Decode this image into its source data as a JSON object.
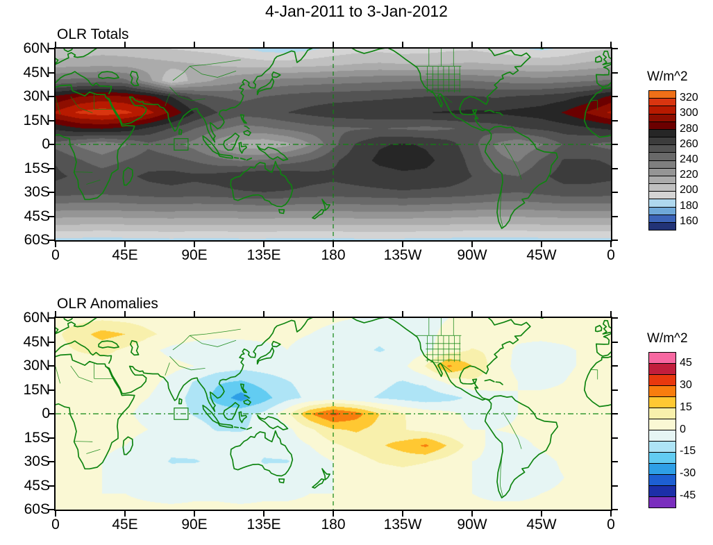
{
  "title": "4-Jan-2011 to 3-Jan-2012",
  "panels": [
    {
      "title": "OLR Totals"
    },
    {
      "title": "OLR Anomalies"
    }
  ],
  "axes": {
    "x_labels": [
      "0",
      "45E",
      "90E",
      "135E",
      "180",
      "135W",
      "90W",
      "45W",
      "0"
    ],
    "y_labels": [
      "60N",
      "45N",
      "30N",
      "15N",
      "0",
      "15S",
      "30S",
      "45S",
      "60S"
    ]
  },
  "colorbars": {
    "totals": {
      "title": "W/m^2",
      "span": [
        150,
        330
      ],
      "thresholds": [
        160,
        170,
        180,
        190,
        200,
        210,
        220,
        230,
        240,
        250,
        260,
        270,
        280,
        290,
        300,
        310,
        320
      ],
      "colors": [
        "#223377",
        "#3C64B8",
        "#6FA8D8",
        "#AFD8EE",
        "#D4D4D4",
        "#C0C0C0",
        "#ABABAB",
        "#959595",
        "#7F7F7F",
        "#696969",
        "#535353",
        "#3C3C3C",
        "#262626",
        "#6B0000",
        "#8E0E00",
        "#B81A00",
        "#D93510",
        "#F07018"
      ],
      "tick_values": [
        320,
        300,
        280,
        260,
        240,
        220,
        200,
        180,
        160
      ],
      "tick_labels": [
        "320",
        "300",
        "280",
        "260",
        "240",
        "220",
        "200",
        "180",
        "160"
      ]
    },
    "anomalies": {
      "title": "W/m^2",
      "span": [
        -52.5,
        52.5
      ],
      "thresholds": [
        -45,
        -37.5,
        -30,
        -22.5,
        -15,
        -7.5,
        0,
        7.5,
        15,
        22.5,
        30,
        37.5,
        45
      ],
      "colors": [
        "#7A2EBE",
        "#1C2FA8",
        "#1D5FD2",
        "#2E9FE6",
        "#62CCF2",
        "#AEE4F6",
        "#E6F5F4",
        "#FAF8D4",
        "#F8F0AC",
        "#FFC832",
        "#F87D0E",
        "#E8380E",
        "#C21E3C",
        "#F768A1"
      ],
      "tick_values": [
        45,
        30,
        15,
        0,
        -15,
        -30,
        -45
      ],
      "tick_labels": [
        "45",
        "30",
        "15",
        "0",
        "-15",
        "-30",
        "-45"
      ]
    }
  },
  "chart_data": [
    {
      "type": "heatmap",
      "title": "OLR Totals",
      "units": "W/m^2",
      "lon_start": 0,
      "lon_step": 15,
      "lat_start": 60,
      "lat_step": -10,
      "colorbar": "totals",
      "values": [
        [
          200,
          203,
          205,
          204,
          202,
          200,
          198,
          196,
          192,
          186,
          185,
          188,
          193,
          196,
          197,
          195,
          196,
          198,
          199,
          196,
          192,
          188,
          192,
          197,
          200
        ],
        [
          216,
          217,
          218,
          217,
          215,
          213,
          211,
          209,
          207,
          206,
          206,
          207,
          209,
          211,
          212,
          211,
          210,
          211,
          212,
          211,
          210,
          209,
          210,
          213,
          216
        ],
        [
          242,
          244,
          246,
          243,
          224,
          200,
          214,
          222,
          228,
          232,
          234,
          235,
          236,
          237,
          238,
          239,
          240,
          241,
          240,
          238,
          236,
          235,
          237,
          239,
          242
        ],
        [
          282,
          290,
          294,
          291,
          284,
          270,
          256,
          250,
          248,
          250,
          253,
          255,
          256,
          257,
          258,
          259,
          260,
          261,
          261,
          259,
          261,
          263,
          266,
          272,
          282
        ],
        [
          302,
          312,
          316,
          313,
          304,
          288,
          270,
          260,
          254,
          256,
          260,
          263,
          266,
          267,
          268,
          269,
          270,
          271,
          272,
          271,
          273,
          275,
          281,
          291,
          302
        ],
        [
          272,
          279,
          281,
          277,
          268,
          259,
          250,
          242,
          236,
          238,
          242,
          246,
          248,
          249,
          250,
          249,
          247,
          249,
          252,
          255,
          259,
          262,
          265,
          268,
          272
        ],
        [
          246,
          238,
          231,
          239,
          248,
          243,
          236,
          224,
          214,
          211,
          217,
          229,
          247,
          261,
          269,
          271,
          269,
          264,
          254,
          239,
          231,
          239,
          251,
          250,
          246
        ],
        [
          259,
          251,
          245,
          250,
          255,
          253,
          249,
          243,
          239,
          241,
          245,
          250,
          258,
          266,
          272,
          274,
          272,
          267,
          257,
          243,
          239,
          251,
          261,
          261,
          259
        ],
        [
          262,
          258,
          255,
          258,
          262,
          264,
          262,
          264,
          268,
          270,
          268,
          264,
          262,
          264,
          266,
          268,
          268,
          266,
          260,
          252,
          250,
          258,
          264,
          264,
          262
        ],
        [
          255,
          254,
          253,
          254,
          256,
          257,
          256,
          257,
          259,
          260,
          259,
          257,
          256,
          257,
          258,
          259,
          258,
          257,
          255,
          252,
          250,
          253,
          256,
          256,
          255
        ],
        [
          234,
          233,
          233,
          234,
          235,
          235,
          234,
          234,
          235,
          236,
          235,
          234,
          234,
          235,
          235,
          236,
          235,
          234,
          233,
          232,
          232,
          233,
          234,
          234,
          234
        ],
        [
          211,
          211,
          210,
          211,
          211,
          212,
          211,
          211,
          212,
          212,
          211,
          211,
          211,
          212,
          212,
          212,
          211,
          211,
          210,
          210,
          210,
          211,
          211,
          211,
          211
        ],
        [
          187,
          187,
          186,
          187,
          187,
          188,
          187,
          187,
          188,
          188,
          187,
          187,
          187,
          188,
          188,
          188,
          187,
          187,
          186,
          186,
          186,
          187,
          187,
          187,
          187
        ]
      ]
    },
    {
      "type": "heatmap",
      "title": "OLR Anomalies",
      "units": "W/m^2",
      "lon_start": 0,
      "lon_step": 15,
      "lat_start": 60,
      "lat_step": -10,
      "colorbar": "anomalies",
      "values": [
        [
          4,
          5,
          6,
          5,
          4,
          3,
          3,
          3,
          3,
          2,
          2,
          2,
          1,
          0,
          -2,
          -3,
          -2,
          0,
          2,
          3,
          3,
          3,
          3,
          4,
          4
        ],
        [
          6,
          12,
          18,
          15,
          9,
          5,
          3,
          2,
          2,
          2,
          1,
          0,
          -2,
          -5,
          -6,
          -4,
          -2,
          2,
          4,
          4,
          3,
          3,
          4,
          5,
          6
        ],
        [
          5,
          8,
          10,
          6,
          2,
          -2,
          -4,
          -5,
          -4,
          -2,
          0,
          -2,
          -4,
          -6,
          -8,
          -6,
          -2,
          4,
          8,
          6,
          -2,
          -4,
          -2,
          2,
          5
        ],
        [
          3,
          3,
          4,
          4,
          3,
          2,
          0,
          -3,
          -5,
          -4,
          -3,
          -2,
          -1,
          -2,
          -4,
          -2,
          8,
          24,
          15,
          4,
          -2,
          -3,
          -1,
          1,
          3
        ],
        [
          4,
          4,
          4,
          3,
          2,
          -2,
          -8,
          -14,
          -16,
          -12,
          -8,
          -5,
          -4,
          -5,
          -6,
          -8,
          -6,
          2,
          6,
          4,
          0,
          -2,
          0,
          2,
          4
        ],
        [
          3,
          3,
          3,
          2,
          0,
          -4,
          -10,
          -18,
          -26,
          -18,
          -10,
          -6,
          -4,
          -6,
          -8,
          -10,
          -12,
          -10,
          -6,
          -3,
          0,
          2,
          2,
          3,
          3
        ],
        [
          2,
          2,
          2,
          1,
          -2,
          -5,
          -8,
          -10,
          -9,
          -6,
          5,
          22,
          32,
          26,
          15,
          8,
          4,
          2,
          -2,
          -3,
          0,
          2,
          2,
          2,
          2
        ],
        [
          2,
          2,
          2,
          2,
          0,
          -3,
          -5,
          -8,
          -8,
          -6,
          -2,
          6,
          14,
          16,
          12,
          8,
          5,
          2,
          0,
          0,
          1,
          2,
          2,
          2,
          2
        ],
        [
          3,
          2,
          1,
          0,
          -3,
          -6,
          -5,
          -3,
          -4,
          -6,
          -4,
          0,
          6,
          10,
          14,
          18,
          24,
          14,
          4,
          -3,
          -2,
          1,
          3,
          3,
          3
        ],
        [
          2,
          1,
          0,
          -2,
          -5,
          -8,
          -8,
          -6,
          -4,
          -8,
          -8,
          -4,
          0,
          4,
          8,
          10,
          8,
          4,
          0,
          -2,
          -4,
          -2,
          1,
          2,
          2
        ],
        [
          1,
          0,
          0,
          -2,
          -3,
          -4,
          -3,
          -2,
          -3,
          -4,
          -3,
          -2,
          0,
          1,
          2,
          3,
          2,
          1,
          0,
          -2,
          -3,
          -2,
          0,
          1,
          1
        ],
        [
          1,
          1,
          0,
          0,
          -1,
          -2,
          -1,
          -1,
          -2,
          -1,
          -1,
          0,
          0,
          1,
          1,
          1,
          1,
          0,
          0,
          -1,
          -1,
          0,
          1,
          1,
          1
        ],
        [
          2,
          2,
          1,
          1,
          1,
          1,
          1,
          1,
          1,
          1,
          1,
          1,
          2,
          2,
          2,
          2,
          2,
          1,
          1,
          1,
          1,
          1,
          2,
          2,
          2
        ]
      ]
    }
  ]
}
